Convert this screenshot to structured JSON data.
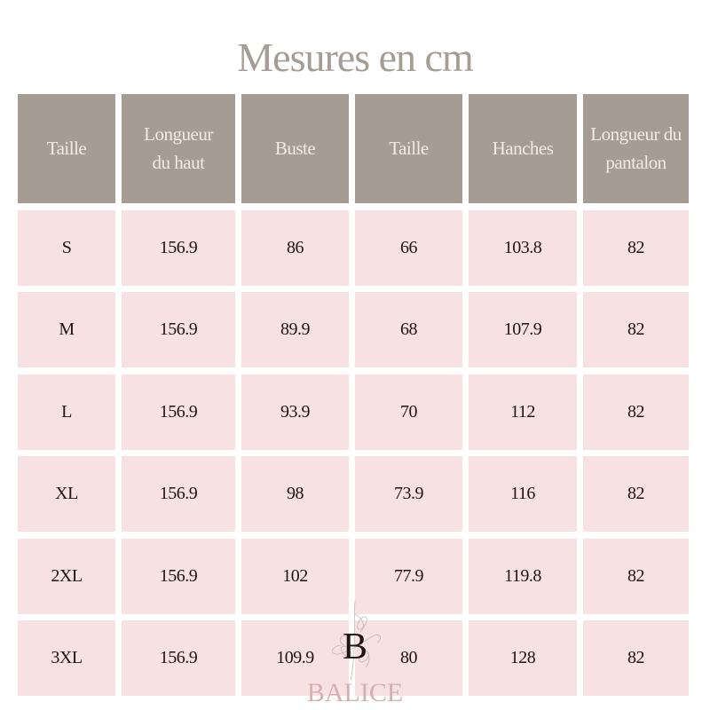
{
  "title": "Mesures en cm",
  "table": {
    "headers": [
      "Taille",
      "Longueur du haut",
      "Buste",
      "Taille",
      "Hanches",
      "Longueur du pantalon"
    ],
    "rows": [
      [
        "S",
        "156.9",
        "86",
        "66",
        "103.8",
        "82"
      ],
      [
        "M",
        "156.9",
        "89.9",
        "68",
        "107.9",
        "82"
      ],
      [
        "L",
        "156.9",
        "93.9",
        "70",
        "112",
        "82"
      ],
      [
        "XL",
        "156.9",
        "98",
        "73.9",
        "116",
        "82"
      ],
      [
        "2XL",
        "156.9",
        "102",
        "77.9",
        "119.8",
        "82"
      ],
      [
        "3XL",
        "156.9",
        "109.9",
        "80",
        "128",
        "82"
      ]
    ]
  },
  "logo": {
    "monogram": "B",
    "brand": "BALICE"
  },
  "colors": {
    "header_bg": "#a59d94",
    "row_bg": "#f8e1e2",
    "title": "#a59d94"
  }
}
